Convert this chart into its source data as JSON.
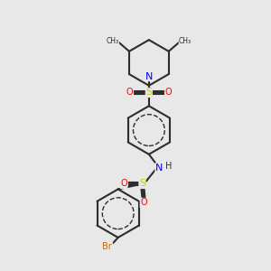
{
  "background_color": "#e8e8e8",
  "bond_color": "#2d2d2d",
  "colors": {
    "N": "#0000ff",
    "S": "#cccc00",
    "O": "#ff0000",
    "Br": "#cc6600",
    "C": "#2d2d2d",
    "H": "#2d2d2d"
  },
  "figsize": [
    3.0,
    3.0
  ],
  "dpi": 100
}
